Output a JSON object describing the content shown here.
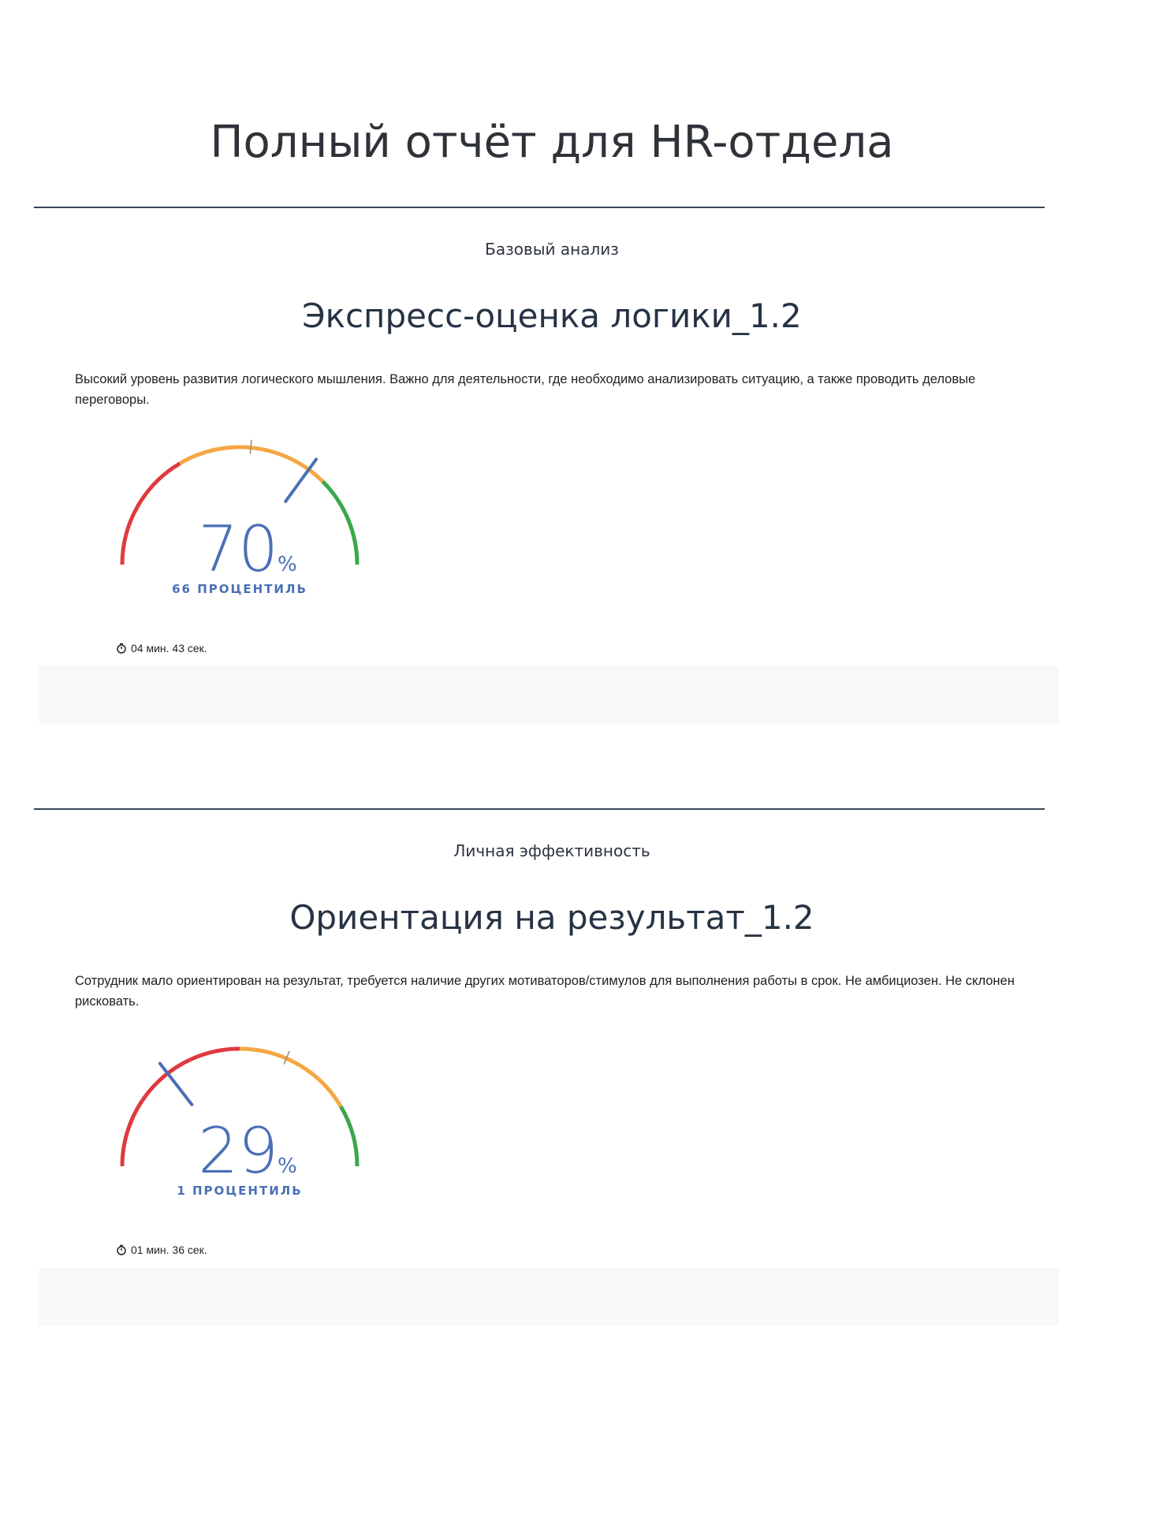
{
  "header": {
    "title": "Полный отчёт для HR-отдела"
  },
  "sections": [
    {
      "category": "Базовый анализ",
      "title": "Экспресс-оценка логики_1.2",
      "description": "Высокий уровень развития логического мышления. Важно для деятельности, где необходимо анализировать ситуацию, а также проводить деловые переговоры.",
      "gauge": {
        "score": 70,
        "percent_sign": "%",
        "percentile": "66 ПРОЦЕНТИЛЬ",
        "zones": [
          33,
          75
        ],
        "norm": 53
      },
      "time": "04 мин. 43 сек."
    },
    {
      "category": "Личная эффективность",
      "title": "Ориентация на результат_1.2",
      "description": "Сотрудник мало ориентирован на результат, требуется наличие других мотиваторов/стимулов для выполнения работы в срок. Не амбициозен. Не склонен рисковать.",
      "gauge": {
        "score": 29,
        "percent_sign": "%",
        "percentile": "1 ПРОЦЕНТИЛЬ",
        "zones": [
          50,
          83
        ],
        "norm": 63
      },
      "time": "01 мин. 36 сек."
    }
  ]
}
